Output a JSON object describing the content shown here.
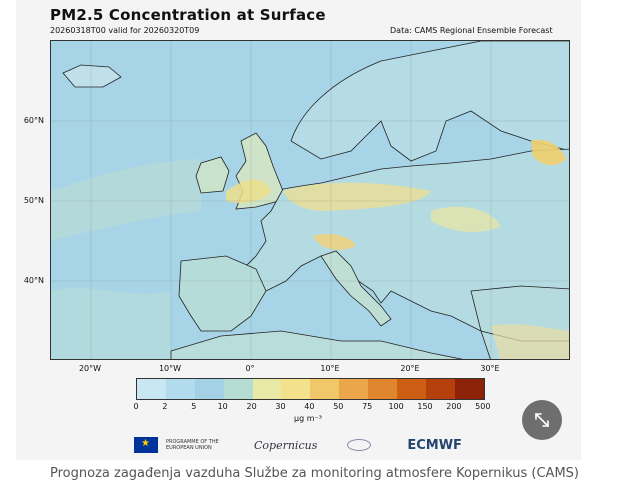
{
  "figure": {
    "title": "PM2.5 Concentration at Surface",
    "subtitle": "20260318T00 valid for 20260320T09",
    "source": "Data: CAMS Regional Ensemble Forecast"
  },
  "map": {
    "lat_labels": [
      "60°N",
      "50°N",
      "40°N"
    ],
    "lon_labels": [
      "20°W",
      "10°W",
      "0°",
      "10°E",
      "20°E",
      "30°E"
    ],
    "colors": {
      "sea": "#a7d4e6",
      "land": "#b3dbe4",
      "coast": "#222222"
    }
  },
  "colorbar": {
    "ticks": [
      "0",
      "2",
      "5",
      "10",
      "20",
      "30",
      "40",
      "50",
      "75",
      "100",
      "150",
      "200",
      "500"
    ],
    "colors": [
      "#c9e7f3",
      "#b2dcee",
      "#a3d2e6",
      "#b5dcd2",
      "#e9e9a6",
      "#f3e18b",
      "#f0c86a",
      "#eba64c",
      "#e0862e",
      "#cd5f15",
      "#b5400c",
      "#8c2308"
    ],
    "unit": "µg m⁻³"
  },
  "logos": {
    "eu_text": "PROGRAMME OF THE EUROPEAN UNION",
    "copernicus": "Copernicus",
    "ecmwf": "ECMWF"
  },
  "expand_icon": "expand-arrows-icon",
  "caption": "Prognoza zagađenja vazduha Službe za monitoring atmosfere Kopernikus (CAMS)"
}
